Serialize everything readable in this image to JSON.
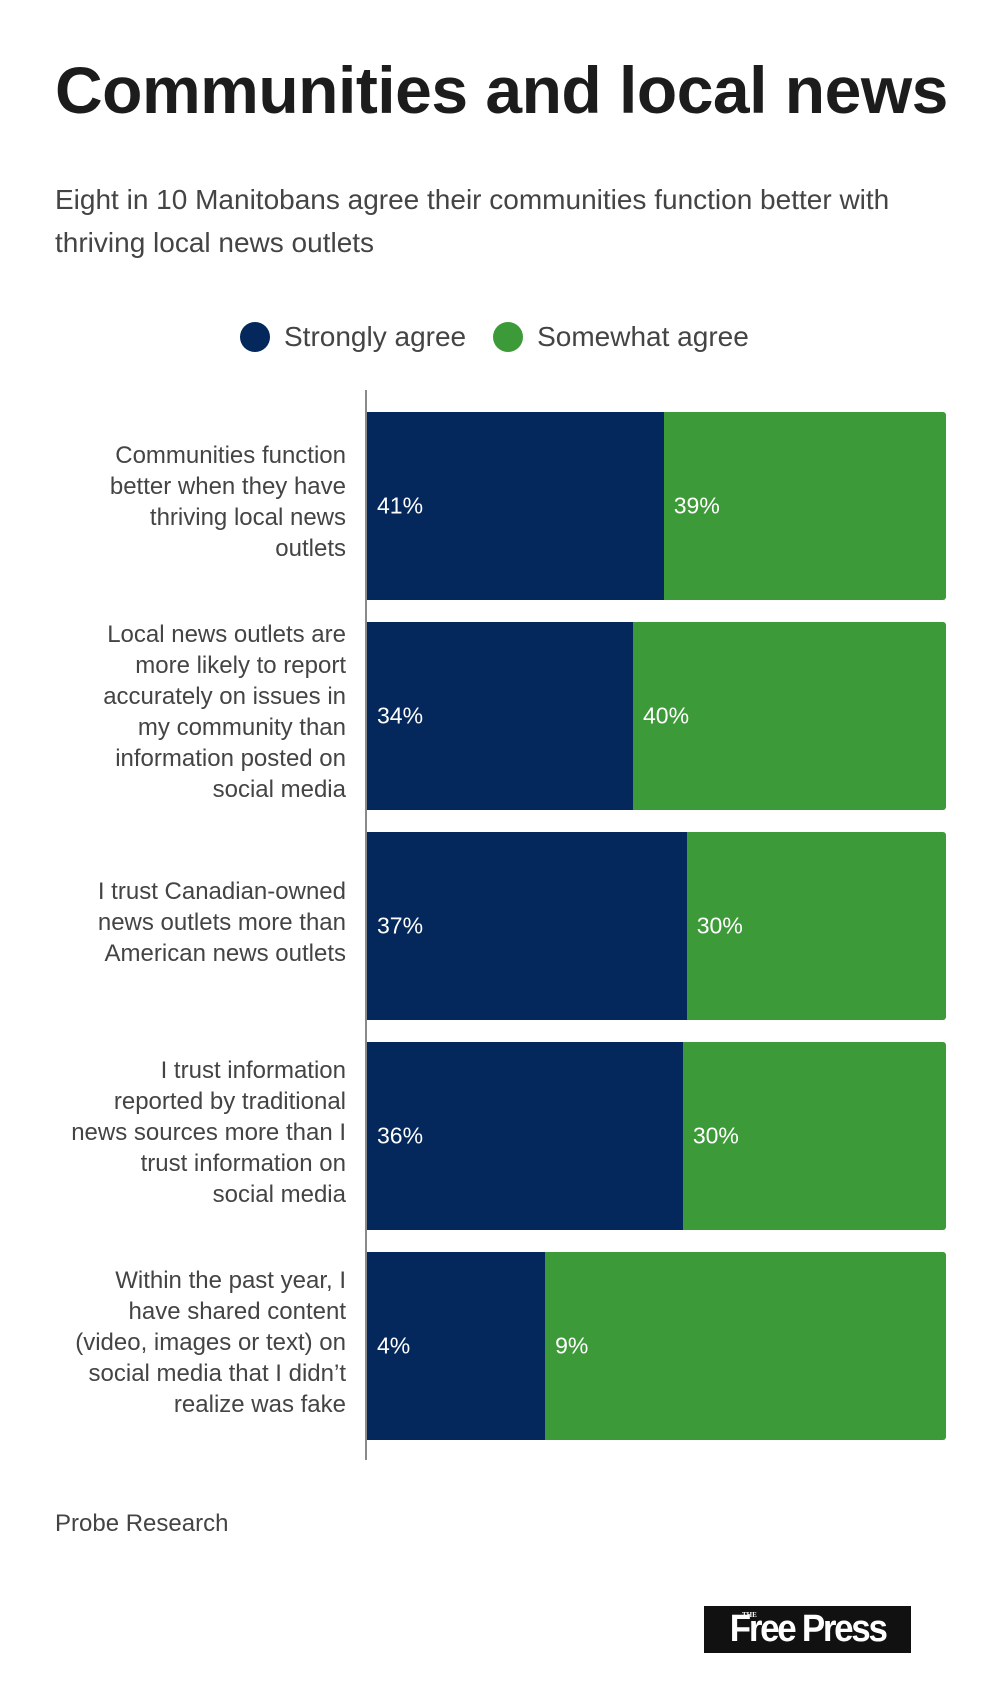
{
  "header": {
    "title": "Communities and local news",
    "subtitle": "Eight in 10 Manitobans agree their communities function better with thriving local news outlets"
  },
  "legend": [
    {
      "label": "Strongly agree",
      "color": "#04285c"
    },
    {
      "label": "Somewhat agree",
      "color": "#3d9a38"
    }
  ],
  "footer": {
    "source": "Probe Research",
    "logo_small": "THE",
    "logo_text": "Free Press"
  },
  "chart_data": {
    "type": "bar",
    "orientation": "horizontal",
    "stacked": true,
    "normalized_to_full_width": true,
    "title": "Communities and local news",
    "subtitle": "Eight in 10 Manitobans agree their communities function better with thriving local news outlets",
    "categories": [
      "Communities function better when they have thriving local news outlets",
      "Local news outlets are more likely to report accurately on issues in my community than information posted on social media",
      "I trust Canadian-owned news outlets more than American news outlets",
      "I trust information reported by traditional news sources more than I trust information on social media",
      "Within the past year, I have shared content (video, images or text) on social media that I didn't realize was fake"
    ],
    "series": [
      {
        "name": "Strongly agree",
        "color": "#04285c",
        "values": [
          41,
          34,
          37,
          36,
          4
        ],
        "labels": [
          "41%",
          "34%",
          "37%",
          "36%",
          "4%"
        ]
      },
      {
        "name": "Somewhat agree",
        "color": "#3d9a38",
        "values": [
          39,
          40,
          30,
          30,
          9
        ],
        "labels": [
          "39%",
          "40%",
          "30%",
          "30%",
          "9%"
        ]
      }
    ],
    "xlabel": "",
    "ylabel": "",
    "legend_position": "top-center",
    "grid": false,
    "source": "Probe Research"
  }
}
